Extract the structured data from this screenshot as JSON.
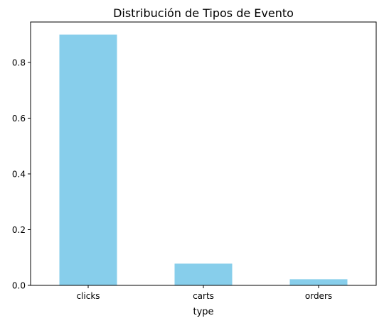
{
  "chart_data": {
    "type": "bar",
    "title": "Distribución de Tipos de Evento",
    "xlabel": "type",
    "ylabel": "",
    "categories": [
      "clicks",
      "carts",
      "orders"
    ],
    "values": [
      0.9,
      0.078,
      0.022
    ],
    "ylim": [
      0,
      0.945
    ],
    "yticks": [
      0.0,
      0.2,
      0.4,
      0.6,
      0.8
    ],
    "ytick_labels": [
      "0.0",
      "0.2",
      "0.4",
      "0.6",
      "0.8"
    ],
    "grid": false,
    "legend": "none",
    "bar_color": "#87CEEB"
  }
}
